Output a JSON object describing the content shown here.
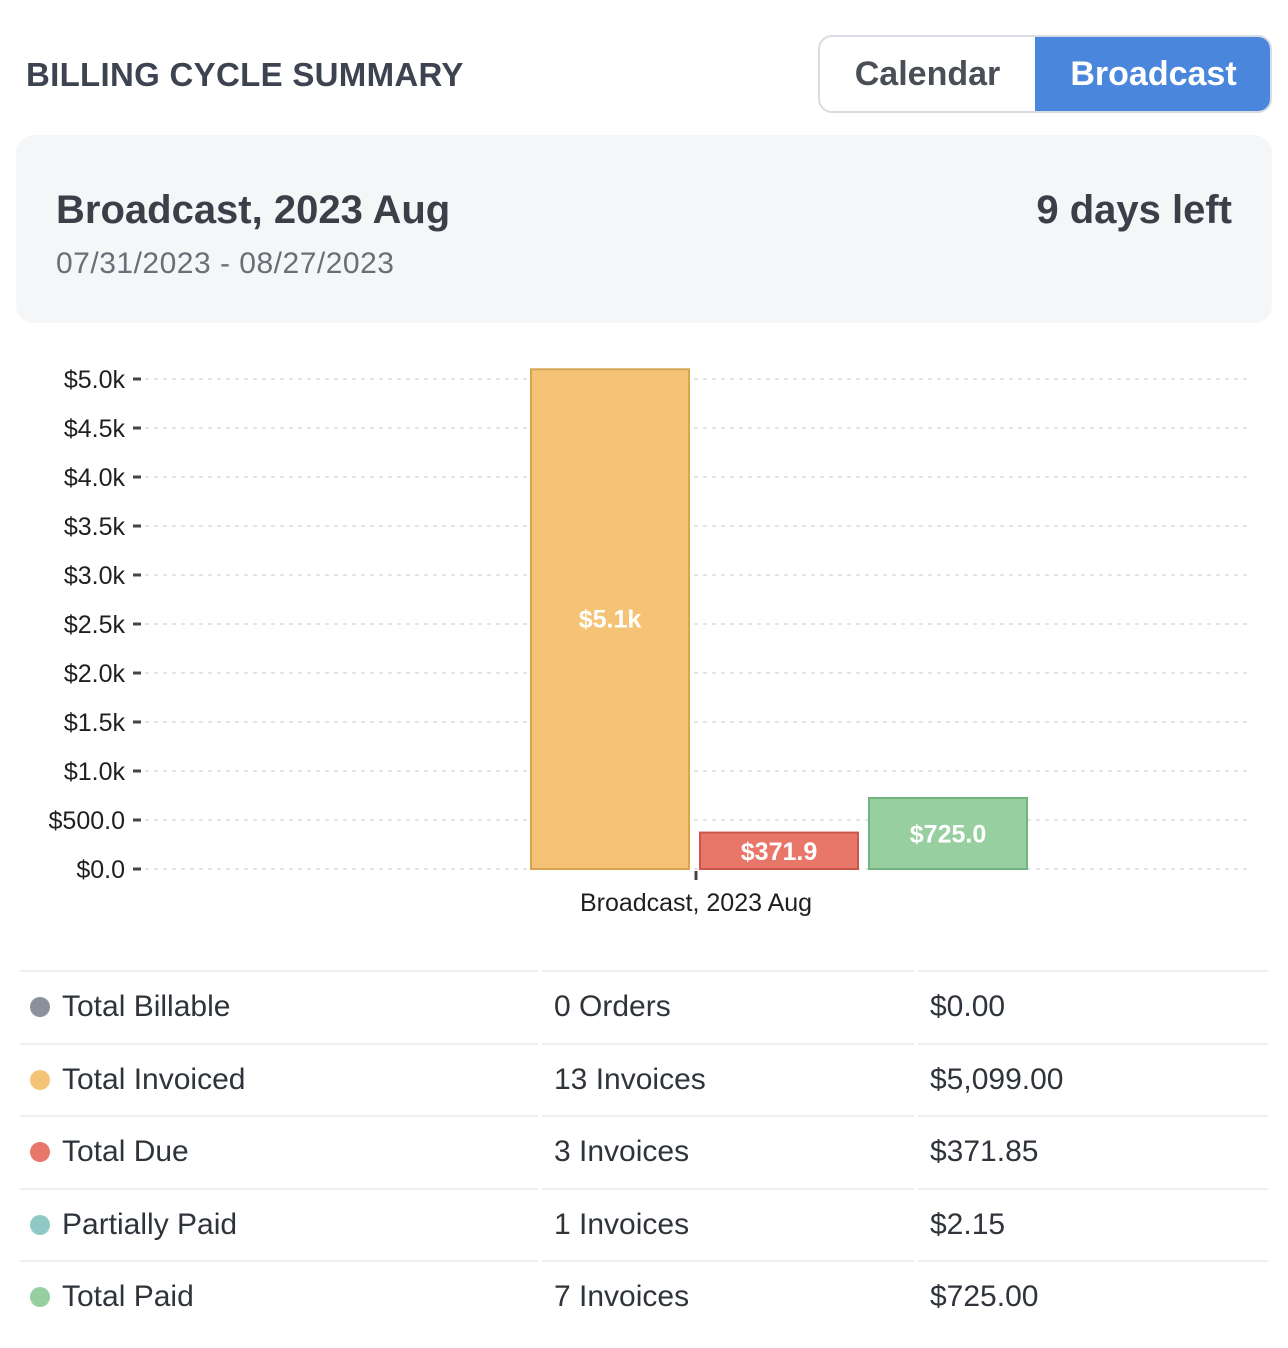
{
  "header": {
    "title": "BILLING CYCLE SUMMARY"
  },
  "toggle": {
    "calendar_label": "Calendar",
    "broadcast_label": "Broadcast",
    "active": "Broadcast"
  },
  "cycle": {
    "name": "Broadcast, 2023 Aug",
    "date_range": "07/31/2023 - 08/27/2023",
    "days_left": "9 days left"
  },
  "chart_data": {
    "type": "bar",
    "categories": [
      "Broadcast, 2023 Aug"
    ],
    "series": [
      {
        "values": [
          5099.0
        ],
        "label": "$5.1k",
        "color": "#f5c375"
      },
      {
        "values": [
          371.85
        ],
        "label": "$371.9",
        "color": "#e8776a"
      },
      {
        "values": [
          725.0
        ],
        "label": "$725.0",
        "color": "#98cfa1"
      }
    ],
    "yticks": [
      {
        "value": 0,
        "label": "$0.0"
      },
      {
        "value": 500,
        "label": "$500.0"
      },
      {
        "value": 1000,
        "label": "$1.0k"
      },
      {
        "value": 1500,
        "label": "$1.5k"
      },
      {
        "value": 2000,
        "label": "$2.0k"
      },
      {
        "value": 2500,
        "label": "$2.5k"
      },
      {
        "value": 3000,
        "label": "$3.0k"
      },
      {
        "value": 3500,
        "label": "$3.5k"
      },
      {
        "value": 4000,
        "label": "$4.0k"
      },
      {
        "value": 4500,
        "label": "$4.5k"
      },
      {
        "value": 5000,
        "label": "$5.0k"
      }
    ],
    "ylim": [
      0,
      5000
    ],
    "grid": true,
    "title": "",
    "xlabel": "",
    "ylabel": ""
  },
  "summary": {
    "rows": [
      {
        "label": "Total Billable",
        "count": "0 Orders",
        "amount": "$0.00",
        "color": "#8a909c"
      },
      {
        "label": "Total Invoiced",
        "count": "13 Invoices",
        "amount": "$5,099.00",
        "color": "#f5c375"
      },
      {
        "label": "Total Due",
        "count": "3 Invoices",
        "amount": "$371.85",
        "color": "#e8776a"
      },
      {
        "label": "Partially Paid",
        "count": "1 Invoices",
        "amount": "$2.15",
        "color": "#8fc9c6"
      },
      {
        "label": "Total Paid",
        "count": "7 Invoices",
        "amount": "$725.00",
        "color": "#98cfa1"
      }
    ]
  }
}
